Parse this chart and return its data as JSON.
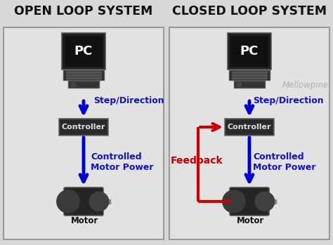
{
  "bg_color": "#d8d8d8",
  "panel_color": "#e2e2e2",
  "panel_border": "#999999",
  "box_color": "#2a2a2a",
  "box_text_color": "#dddddd",
  "title_color": "#111111",
  "blue_arrow": "#0000cc",
  "red_arrow": "#cc0000",
  "blue_label": "#1111cc",
  "red_label": "#cc0000",
  "watermark": "Mellowpine",
  "watermark_color": "#b0b0b0",
  "left_title": "OPEN LOOP SYSTEM",
  "right_title": "CLOSED LOOP SYSTEM",
  "step_direction": "Step/Direction",
  "controlled_motor_power": "Controlled\nMotor Power",
  "feedback": "Feedback",
  "controller": "Controller",
  "motor": "Motor",
  "pc": "PC",
  "fig_w": 4.74,
  "fig_h": 3.49,
  "dpi": 100
}
